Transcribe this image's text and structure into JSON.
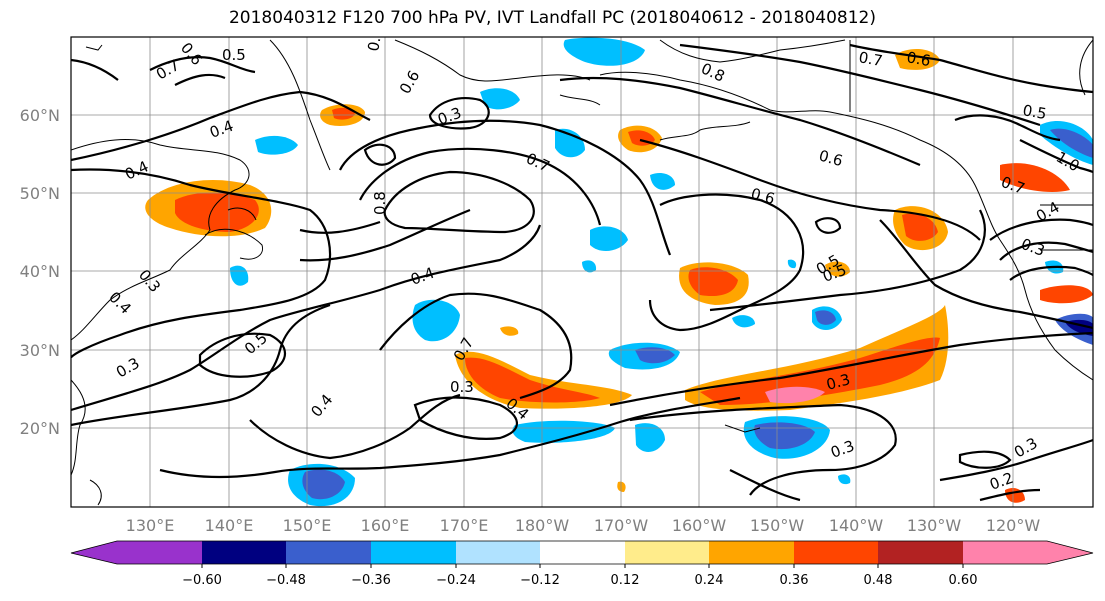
{
  "title": "2018040312 F120 700 hPa PV, IVT Landfall PC (2018040612 - 2018040812)",
  "lat_labels": [
    "60°N",
    "50°N",
    "40°N",
    "30°N",
    "20°N"
  ],
  "lon_labels": [
    "130°E",
    "140°E",
    "150°E",
    "160°E",
    "170°E",
    "180°W",
    "170°W",
    "160°W",
    "150°W",
    "140°W",
    "130°W",
    "120°W"
  ],
  "colorbar": {
    "ticks": [
      "−0.60",
      "−0.48",
      "−0.36",
      "−0.24",
      "−0.12",
      "0.12",
      "0.24",
      "0.36",
      "0.48",
      "0.60"
    ],
    "colors": [
      "#9932cc",
      "#000080",
      "#3a5fcd",
      "#00bfff",
      "#b0e2ff",
      "#ffffff",
      "#ffec8b",
      "#ffa500",
      "#ff4500",
      "#b22222",
      "#ff82ab"
    ]
  },
  "contour_labels": [
    "0.6",
    "0.5",
    "0.7",
    "0.4",
    "0.9",
    "0.6",
    "0.7",
    "0.8",
    "0.5",
    "0.4",
    "0.3",
    "0.4",
    "0.3",
    "0.4",
    "0.5",
    "0.3",
    "0.4",
    "0.7",
    "0.3",
    "0.4",
    "0.6",
    "0.5",
    "0.3",
    "0.3",
    "0.2",
    "0.3",
    "0.7",
    "0.6",
    "0.6",
    "0.8",
    "0.5",
    "1.0",
    "0.7",
    "0.4",
    "0.3"
  ]
}
